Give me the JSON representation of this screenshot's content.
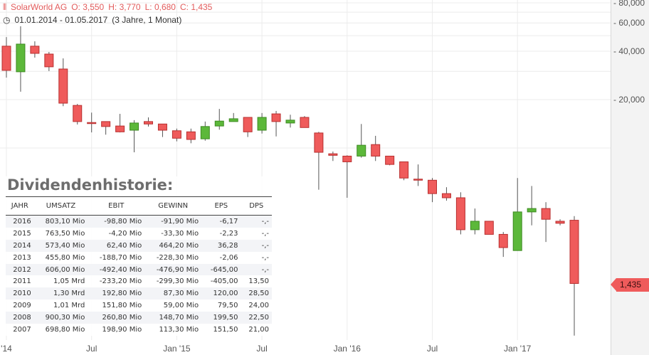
{
  "header": {
    "name": "SolarWorld AG",
    "open": "O: 3,550",
    "high": "H: 3,770",
    "low": "L: 0,680",
    "close": "C: 1,435",
    "range": "01.01.2014 - 01.05.2017",
    "duration": "(3 Jahre, 1 Monat)"
  },
  "price_tag": "1,435",
  "colors": {
    "up": "#5cb83a",
    "down": "#ef5b5b",
    "up_border": "#3d8a22",
    "down_border": "#b83030"
  },
  "chart_data": {
    "type": "candlestick",
    "title": "SolarWorld AG",
    "yscale": "log",
    "ylim": [
      0.6,
      85
    ],
    "y_ticks": [
      {
        "v": 80,
        "label": "80,000"
      },
      {
        "v": 60,
        "label": "60,000"
      },
      {
        "v": 40,
        "label": "40,000"
      },
      {
        "v": 20,
        "label": "20,000"
      }
    ],
    "y_grid": [
      80,
      70,
      60,
      50,
      40,
      30,
      20,
      10
    ],
    "x_ticks": [
      {
        "i": 0,
        "label": "'14"
      },
      {
        "i": 6,
        "label": "Jul"
      },
      {
        "i": 12,
        "label": "Jan '15"
      },
      {
        "i": 18,
        "label": "Jul"
      },
      {
        "i": 24,
        "label": "Jan '16"
      },
      {
        "i": 30,
        "label": "Jul"
      },
      {
        "i": 36,
        "label": "Jan '17"
      }
    ],
    "first_month": "2014-01",
    "ohlc": [
      [
        43.0,
        49.0,
        27.4,
        30.4
      ],
      [
        29.8,
        57.2,
        22.4,
        44.3
      ],
      [
        43.0,
        46.1,
        36.5,
        38.8
      ],
      [
        38.4,
        39.6,
        30.1,
        32.0
      ],
      [
        31.0,
        36.1,
        18.2,
        19.0
      ],
      [
        18.4,
        18.8,
        14.0,
        14.6
      ],
      [
        14.4,
        16.6,
        12.5,
        14.4
      ],
      [
        14.6,
        14.6,
        12.1,
        13.6
      ],
      [
        13.7,
        16.3,
        12.5,
        12.6
      ],
      [
        12.9,
        14.9,
        9.4,
        14.3
      ],
      [
        14.6,
        15.5,
        13.6,
        14.1
      ],
      [
        14.1,
        14.1,
        11.7,
        12.9
      ],
      [
        12.8,
        13.2,
        11.0,
        11.5
      ],
      [
        12.6,
        13.2,
        10.7,
        11.3
      ],
      [
        11.4,
        14.6,
        11.1,
        13.6
      ],
      [
        13.7,
        17.5,
        13.0,
        14.7
      ],
      [
        14.6,
        16.5,
        14.6,
        15.2
      ],
      [
        15.5,
        15.5,
        11.7,
        12.6
      ],
      [
        12.9,
        16.5,
        12.3,
        15.5
      ],
      [
        16.3,
        17.0,
        11.8,
        14.6
      ],
      [
        14.3,
        16.1,
        13.4,
        14.9
      ],
      [
        15.5,
        15.8,
        13.4,
        13.4
      ],
      [
        12.4,
        12.6,
        5.5,
        9.4
      ],
      [
        9.2,
        9.5,
        8.3,
        9.0
      ],
      [
        8.9,
        9.0,
        4.9,
        8.2
      ],
      [
        8.9,
        14.1,
        8.7,
        10.4
      ],
      [
        10.5,
        11.9,
        8.3,
        8.9
      ],
      [
        8.9,
        8.9,
        7.8,
        7.9
      ],
      [
        8.2,
        8.2,
        6.3,
        6.5
      ],
      [
        6.4,
        7.9,
        5.8,
        6.4
      ],
      [
        6.3,
        6.5,
        4.6,
        5.2
      ],
      [
        5.2,
        5.7,
        4.7,
        4.9
      ],
      [
        4.9,
        5.3,
        2.9,
        3.1
      ],
      [
        3.1,
        4.2,
        2.9,
        3.5
      ],
      [
        3.5,
        3.5,
        2.9,
        2.9
      ],
      [
        2.9,
        3.0,
        2.1,
        2.4
      ],
      [
        2.3,
        6.5,
        2.3,
        4.0
      ],
      [
        4.0,
        5.8,
        3.3,
        4.2
      ],
      [
        4.2,
        4.6,
        2.6,
        3.6
      ],
      [
        3.5,
        3.6,
        3.3,
        3.4
      ],
      [
        3.55,
        3.77,
        0.68,
        1.435
      ]
    ]
  },
  "dividend": {
    "title": "Dividendenhistorie:",
    "columns": [
      "JAHR",
      "UMSATZ",
      "EBIT",
      "GEWINN",
      "EPS",
      "DPS"
    ],
    "rows": [
      [
        "2016",
        "803,10 Mio",
        "-98,80 Mio",
        "-91,90 Mio",
        "-6,17",
        "-,-"
      ],
      [
        "2015",
        "763,50 Mio",
        "-4,20 Mio",
        "-33,30 Mio",
        "-2,23",
        "-,-"
      ],
      [
        "2014",
        "573,40 Mio",
        "62,40 Mio",
        "464,20 Mio",
        "36,28",
        "-,-"
      ],
      [
        "2013",
        "455,80 Mio",
        "-188,70 Mio",
        "-228,30 Mio",
        "-2,06",
        "-,-"
      ],
      [
        "2012",
        "606,00 Mio",
        "-492,40 Mio",
        "-476,90 Mio",
        "-645,00",
        "-,-"
      ],
      [
        "2011",
        "1,05 Mrd",
        "-233,20 Mio",
        "-299,30 Mio",
        "-405,00",
        "13,50"
      ],
      [
        "2010",
        "1,30 Mrd",
        "192,80 Mio",
        "87,30 Mio",
        "120,00",
        "28,50"
      ],
      [
        "2009",
        "1,01 Mrd",
        "151,80 Mio",
        "59,00 Mio",
        "79,50",
        "24,00"
      ],
      [
        "2008",
        "900,30 Mio",
        "260,80 Mio",
        "148,70 Mio",
        "199,50",
        "22,50"
      ],
      [
        "2007",
        "698,80 Mio",
        "198,90 Mio",
        "113,30 Mio",
        "151,50",
        "21,00"
      ]
    ]
  }
}
